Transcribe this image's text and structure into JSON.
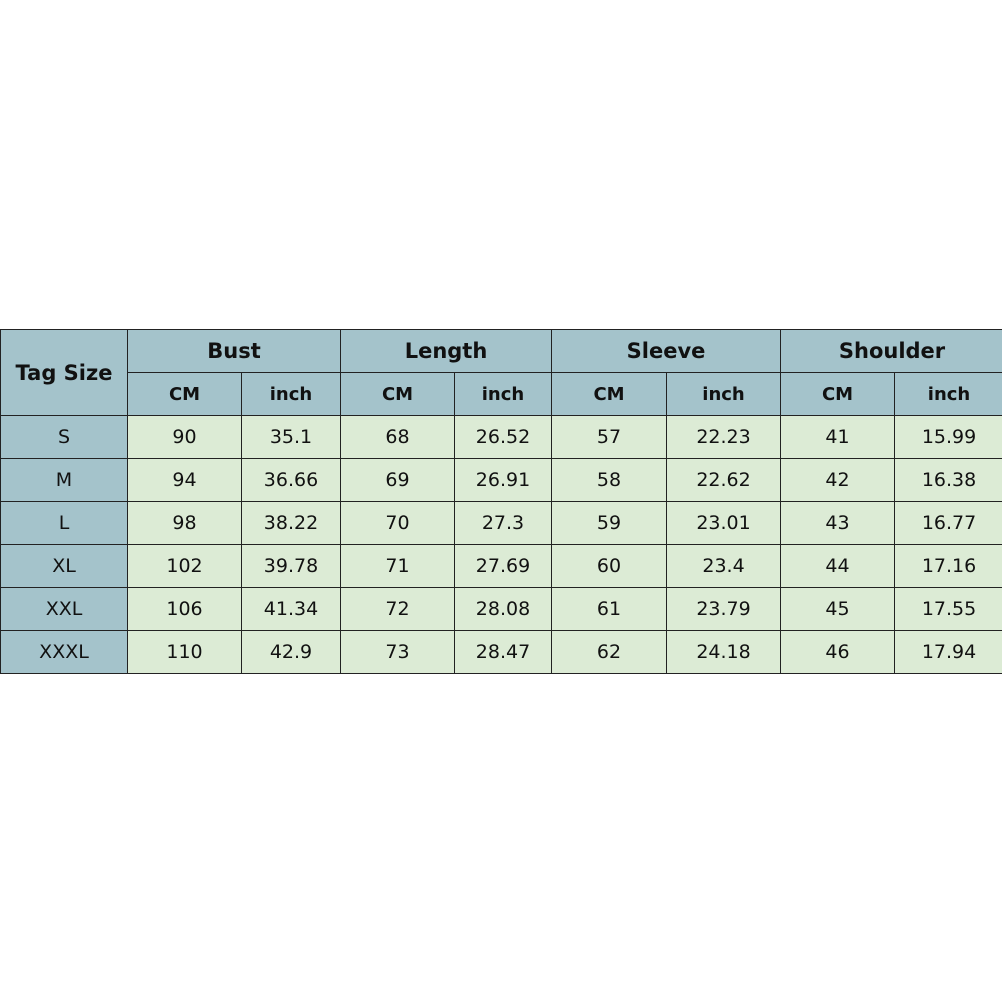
{
  "table": {
    "tag_header": "Tag Size",
    "groups": [
      "Bust",
      "Length",
      "Sleeve",
      "Shoulder"
    ],
    "units": [
      "CM",
      "inch"
    ],
    "rows": [
      {
        "size": "S",
        "values": [
          "90",
          "35.1",
          "68",
          "26.52",
          "57",
          "22.23",
          "41",
          "15.99"
        ]
      },
      {
        "size": "M",
        "values": [
          "94",
          "36.66",
          "69",
          "26.91",
          "58",
          "22.62",
          "42",
          "16.38"
        ]
      },
      {
        "size": "L",
        "values": [
          "98",
          "38.22",
          "70",
          "27.3",
          "59",
          "23.01",
          "43",
          "16.77"
        ]
      },
      {
        "size": "XL",
        "values": [
          "102",
          "39.78",
          "71",
          "27.69",
          "60",
          "23.4",
          "44",
          "17.16"
        ]
      },
      {
        "size": "XXL",
        "values": [
          "106",
          "41.34",
          "72",
          "28.08",
          "61",
          "23.79",
          "45",
          "17.55"
        ]
      },
      {
        "size": "XXXL",
        "values": [
          "110",
          "42.9",
          "73",
          "28.47",
          "62",
          "24.18",
          "46",
          "17.94"
        ]
      }
    ]
  },
  "colors": {
    "header_bg": "#a4c3cb",
    "cell_bg": "#dcebd5",
    "border": "#222222"
  }
}
